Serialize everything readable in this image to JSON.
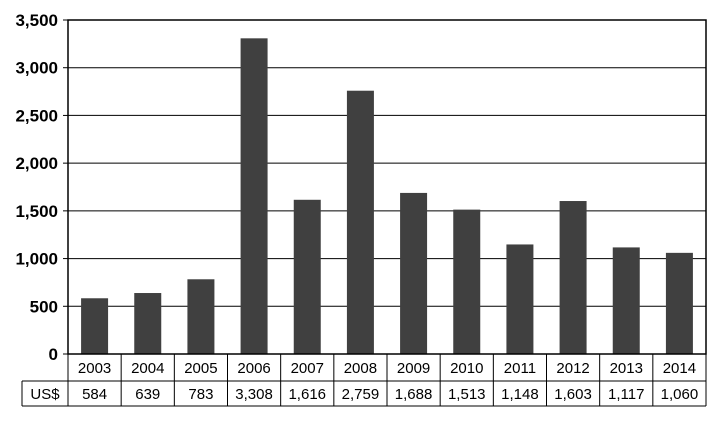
{
  "chart_data": {
    "type": "bar",
    "categories": [
      "2003",
      "2004",
      "2005",
      "2006",
      "2007",
      "2008",
      "2009",
      "2010",
      "2011",
      "2012",
      "2013",
      "2014"
    ],
    "series": [
      {
        "name": "US$",
        "values": [
          584,
          639,
          783,
          3308,
          1616,
          2759,
          1688,
          1513,
          1148,
          1603,
          1117,
          1060
        ]
      }
    ],
    "value_labels": [
      "584",
      "639",
      "783",
      "3,308",
      "1,616",
      "2,759",
      "1,688",
      "1,513",
      "1,148",
      "1,603",
      "1,117",
      "1,060"
    ],
    "ylim": [
      0,
      3500
    ],
    "yticks": [
      0,
      500,
      1000,
      1500,
      2000,
      2500,
      3000,
      3500
    ],
    "ytick_labels": [
      "0",
      "500",
      "1,000",
      "1,500",
      "2,000",
      "2,500",
      "3,000",
      "3,500"
    ],
    "grid": true,
    "data_table": true,
    "bar_color": "#404040"
  }
}
